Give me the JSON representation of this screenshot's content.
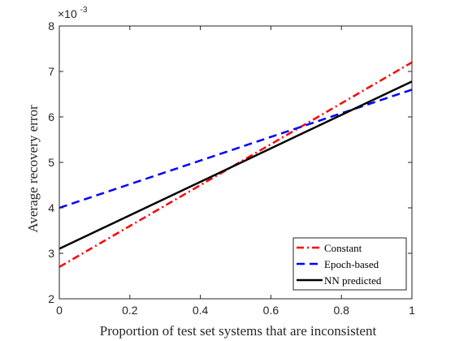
{
  "chart_data": {
    "type": "line",
    "xlabel": "Proportion of test set systems that are inconsistent",
    "ylabel": "Average recovery error",
    "y_exponent_base": "×10",
    "y_exponent_power": "-3",
    "xlim": [
      0,
      1
    ],
    "ylim": [
      2,
      8
    ],
    "x_ticks": [
      "0",
      "0.2",
      "0.4",
      "0.6",
      "0.8",
      "1"
    ],
    "y_ticks": [
      "2",
      "3",
      "4",
      "5",
      "6",
      "7",
      "8"
    ],
    "grid": false,
    "legend_position": "bottom-right",
    "series": [
      {
        "name": "Constant",
        "style": "dash-dot",
        "color": "#ff0000",
        "x": [
          0,
          1
        ],
        "y": [
          2.7,
          7.2
        ]
      },
      {
        "name": "Epoch-based",
        "style": "dashed",
        "color": "#0000ff",
        "x": [
          0,
          1
        ],
        "y": [
          4.0,
          6.6
        ]
      },
      {
        "name": "NN predicted",
        "style": "solid",
        "color": "#000000",
        "x": [
          0,
          1
        ],
        "y": [
          3.1,
          6.78
        ]
      }
    ]
  }
}
